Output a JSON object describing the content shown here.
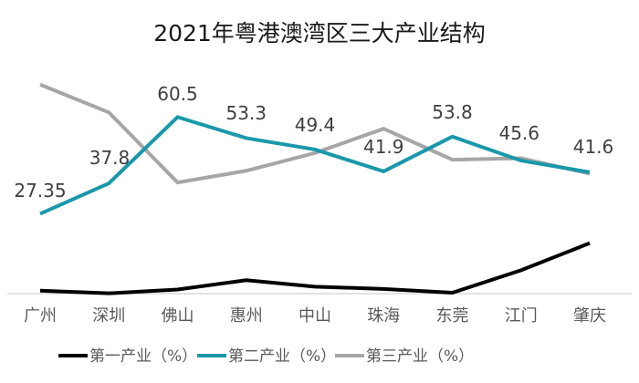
{
  "chart_data": {
    "type": "line",
    "title": "2021年粤港澳湾区三大产业结构",
    "xlabel": "",
    "ylabel": "",
    "ylim": [
      0,
      85
    ],
    "grid": false,
    "legend_position": "bottom",
    "categories": [
      "广州",
      "深圳",
      "佛山",
      "惠州",
      "中山",
      "珠海",
      "东莞",
      "江门",
      "肇庆"
    ],
    "series": [
      {
        "name": "第一产业（%）",
        "color": "#000000",
        "values": [
          1.0,
          0.1,
          1.4,
          4.6,
          2.4,
          1.6,
          0.3,
          8.0,
          17.3
        ],
        "labels": []
      },
      {
        "name": "第二产业（%）",
        "color": "#1a98ab",
        "values": [
          27.35,
          37.8,
          60.5,
          53.3,
          49.4,
          41.9,
          53.8,
          45.6,
          41.6
        ],
        "labels": [
          "27.35",
          "37.8",
          "60.5",
          "53.3",
          "49.4",
          "41.9",
          "53.8",
          "45.6",
          "41.6"
        ]
      },
      {
        "name": "第三产业（%）",
        "color": "#a6a6a6",
        "values": [
          71.65,
          62.1,
          38.1,
          42.1,
          48.2,
          56.5,
          45.9,
          46.4,
          41.1
        ],
        "labels": []
      }
    ]
  }
}
